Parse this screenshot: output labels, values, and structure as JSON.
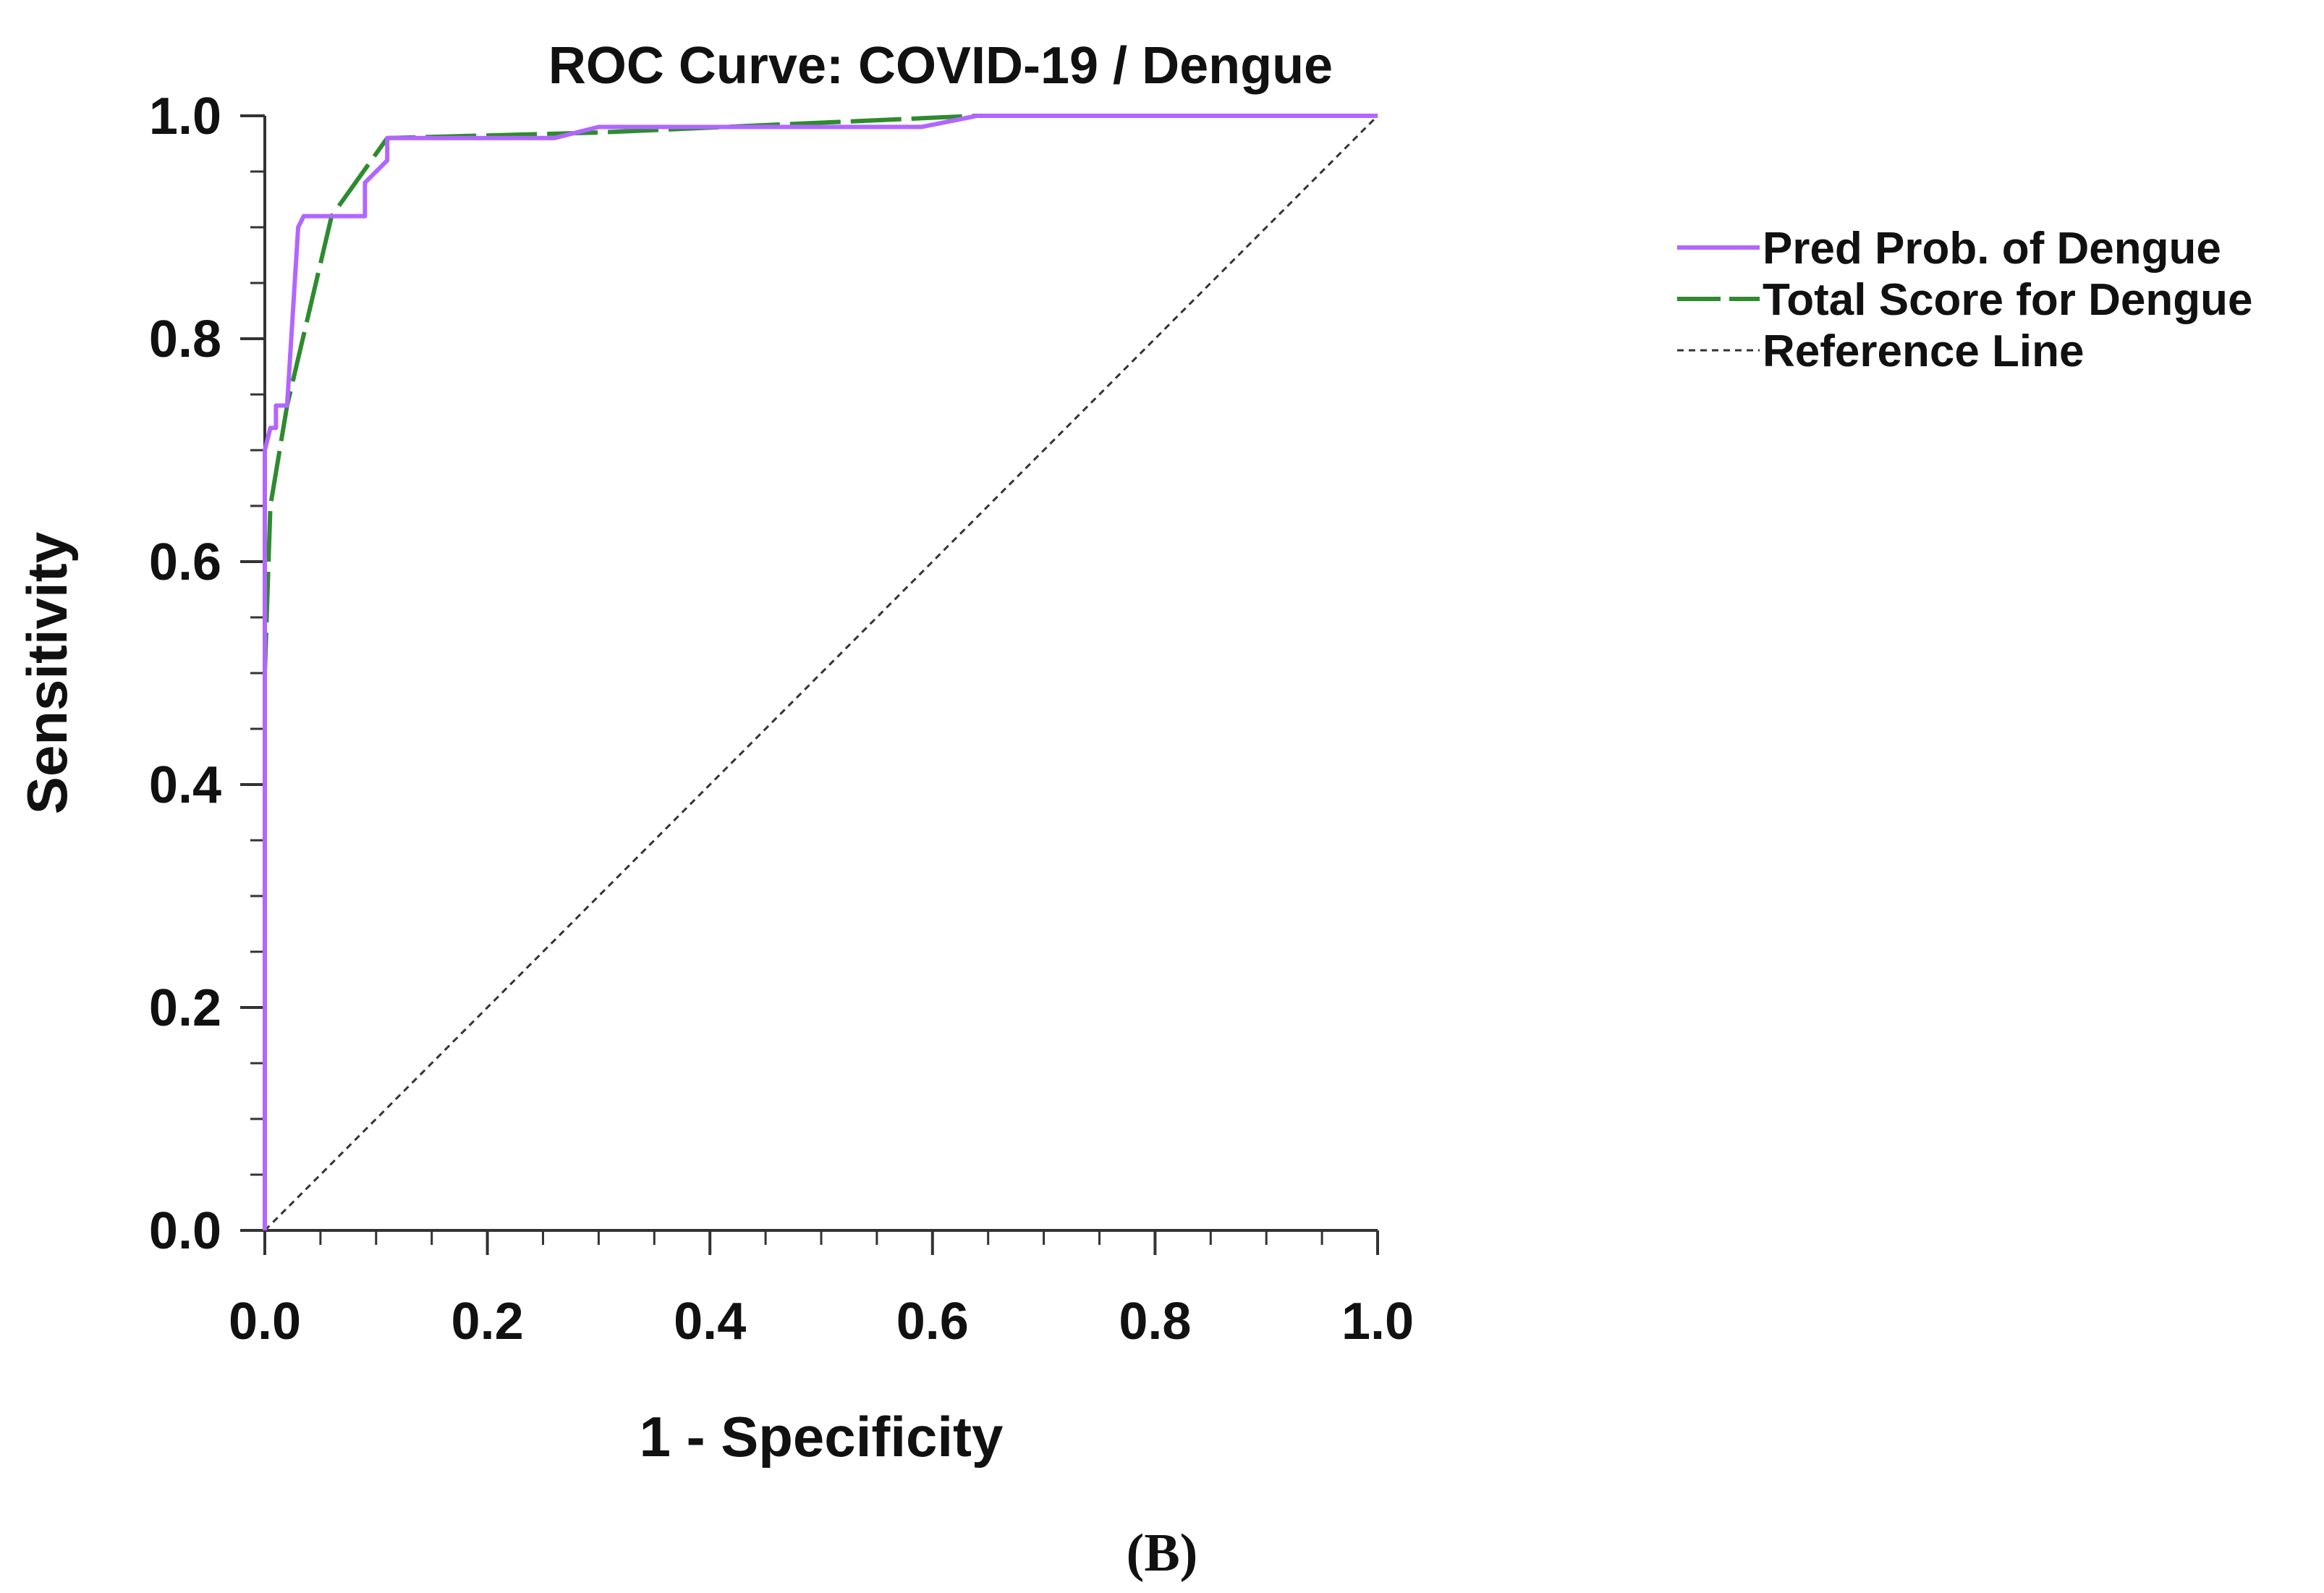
{
  "chart_data": {
    "type": "line",
    "title": "ROC Curve: COVID-19 / Dengue",
    "xlabel": "1 - Specificity",
    "ylabel": "Sensitivity",
    "xlim": [
      0.0,
      1.0
    ],
    "ylim": [
      0.0,
      1.0
    ],
    "x_ticks": [
      "0.0",
      "0.2",
      "0.4",
      "0.6",
      "0.8",
      "1.0"
    ],
    "y_ticks": [
      "0.0",
      "0.2",
      "0.4",
      "0.6",
      "0.8",
      "1.0"
    ],
    "grid": false,
    "legend_position": "right",
    "panel_label": "(B)",
    "series": [
      {
        "name": "Pred Prob. of Dengue",
        "color": "#b266ff",
        "style": "solid",
        "x": [
          0.0,
          0.0,
          0.005,
          0.01,
          0.01,
          0.02,
          0.03,
          0.035,
          0.09,
          0.09,
          0.1,
          0.11,
          0.11,
          0.26,
          0.3,
          0.59,
          0.64,
          1.0
        ],
        "y": [
          0.0,
          0.7,
          0.72,
          0.72,
          0.74,
          0.74,
          0.9,
          0.91,
          0.91,
          0.94,
          0.95,
          0.96,
          0.98,
          0.98,
          0.99,
          0.99,
          1.0,
          1.0
        ]
      },
      {
        "name": "Total Score for Dengue",
        "color": "#2e8b2e",
        "style": "dashed",
        "x": [
          0.0,
          0.0,
          0.005,
          0.015,
          0.02,
          0.06,
          0.11,
          0.3,
          0.64,
          1.0
        ],
        "y": [
          0.0,
          0.5,
          0.65,
          0.71,
          0.74,
          0.91,
          0.98,
          0.985,
          1.0,
          1.0
        ]
      },
      {
        "name": "Reference Line",
        "color": "#333333",
        "style": "dotted",
        "x": [
          0.0,
          1.0
        ],
        "y": [
          0.0,
          1.0
        ]
      }
    ]
  }
}
